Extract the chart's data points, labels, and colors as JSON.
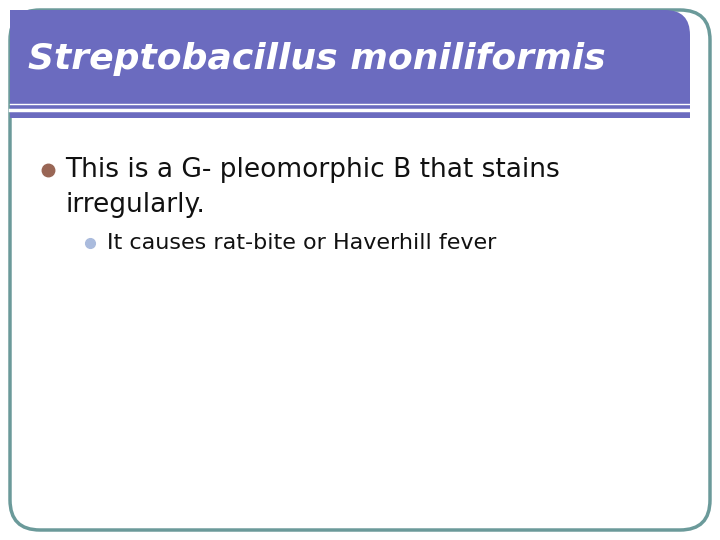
{
  "title": "Streptobacillus moniliformis",
  "title_color": "#ffffff",
  "title_bg_color": "#6B6BBF",
  "title_font_size": 26,
  "slide_bg_color": "#ffffff",
  "border_color": "#6B9A9A",
  "bullet1_text_line1": "This is a G- pleomorphic B that stains",
  "bullet1_text_line2": "irregularly.",
  "bullet1_color": "#111111",
  "bullet1_marker_color": "#996655",
  "bullet1_font_size": 19,
  "bullet2_text": "It causes rat-bite or Haverhill fever",
  "bullet2_color": "#111111",
  "bullet2_marker_color": "#aabbdd",
  "bullet2_font_size": 16,
  "white_line_color": "#ffffff"
}
